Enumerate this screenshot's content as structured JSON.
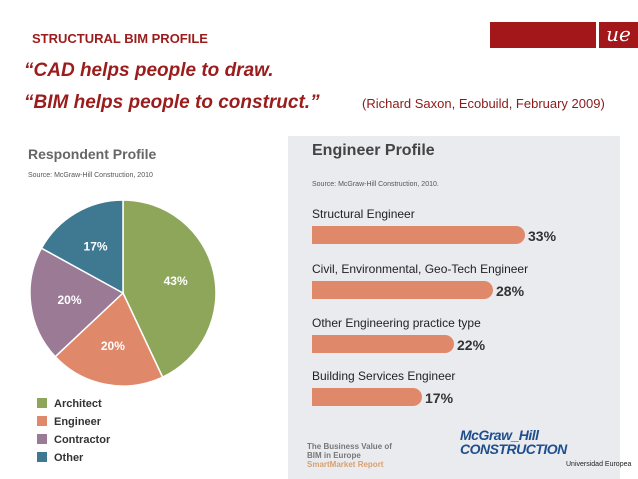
{
  "slide": {
    "title": "STRUCTURAL BIM PROFILE",
    "logo": "ue",
    "quote_line1": "“CAD helps people to draw.",
    "quote_line2": "“BIM helps people to construct.”",
    "attribution": "(Richard Saxon, Ecobuild, February 2009)",
    "footer_institution": "Universidad Europea"
  },
  "respondent": {
    "title": "Respondent Profile",
    "source": "Source: McGraw-Hill Construction, 2010"
  },
  "engineer": {
    "title": "Engineer Profile",
    "source": "Source: McGraw-Hill Construction, 2010.",
    "report_line1": "The Business Value of",
    "report_line2": "BIM in Europe",
    "report_line3": "SmartMarket Report",
    "brand_line1": "McGraw_Hill",
    "brand_line2": "CONSTRUCTION"
  },
  "chart_data": [
    {
      "type": "pie",
      "title": "Respondent Profile",
      "categories": [
        "Architect",
        "Engineer",
        "Contractor",
        "Other"
      ],
      "values": [
        43,
        20,
        20,
        17
      ],
      "labels": [
        "43%",
        "20%",
        "20%",
        "17%"
      ],
      "colors": [
        "#8ea65a",
        "#e0896a",
        "#9a7a94",
        "#3e7891"
      ],
      "legend": "bottom-left"
    },
    {
      "type": "bar",
      "orientation": "horizontal",
      "title": "Engineer Profile",
      "categories": [
        "Structural Engineer",
        "Civil, Environmental, Geo-Tech Engineer",
        "Other Engineering practice type",
        "Building Services Engineer"
      ],
      "values": [
        33,
        28,
        22,
        17
      ],
      "labels": [
        "33%",
        "28%",
        "22%",
        "17%"
      ],
      "color": "#e0896a"
    }
  ]
}
